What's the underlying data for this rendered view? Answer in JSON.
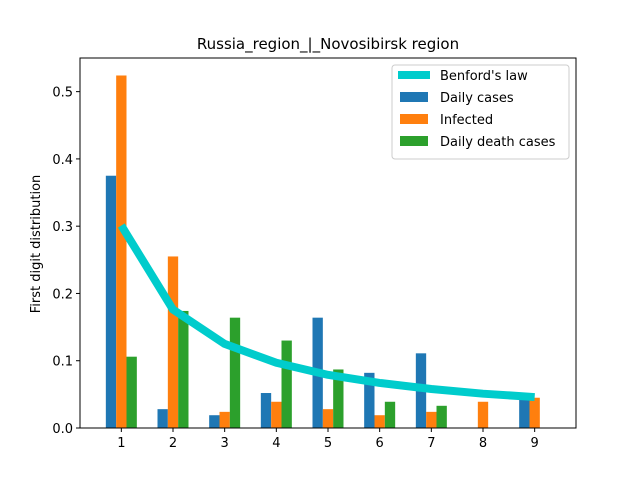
{
  "chart_data": {
    "type": "bar",
    "title": "Russia_region_|_Novosibirsk region",
    "xlabel": "",
    "ylabel": "First digit distribution",
    "categories": [
      "1",
      "2",
      "3",
      "4",
      "5",
      "6",
      "7",
      "8",
      "9"
    ],
    "ylim": [
      0,
      0.55
    ],
    "yticks": [
      "0.0",
      "0.1",
      "0.2",
      "0.3",
      "0.4",
      "0.5"
    ],
    "legend_position": "top-right",
    "grid": false,
    "series": [
      {
        "name": "Daily cases",
        "kind": "bar",
        "color": "#1f77b4",
        "values": [
          0.375,
          0.028,
          0.019,
          0.052,
          0.164,
          0.082,
          0.111,
          0.0,
          0.045
        ]
      },
      {
        "name": "Infected",
        "kind": "bar",
        "color": "#ff7f0e",
        "values": [
          0.524,
          0.255,
          0.024,
          0.039,
          0.028,
          0.019,
          0.024,
          0.039,
          0.045
        ]
      },
      {
        "name": "Daily death cases",
        "kind": "bar",
        "color": "#2ca02c",
        "values": [
          0.106,
          0.174,
          0.164,
          0.13,
          0.087,
          0.039,
          0.033,
          0.0,
          0.0
        ]
      },
      {
        "name": "Benford's law",
        "kind": "line",
        "color": "#00cccc",
        "values": [
          0.301,
          0.176,
          0.125,
          0.097,
          0.079,
          0.067,
          0.058,
          0.051,
          0.046
        ]
      }
    ]
  }
}
